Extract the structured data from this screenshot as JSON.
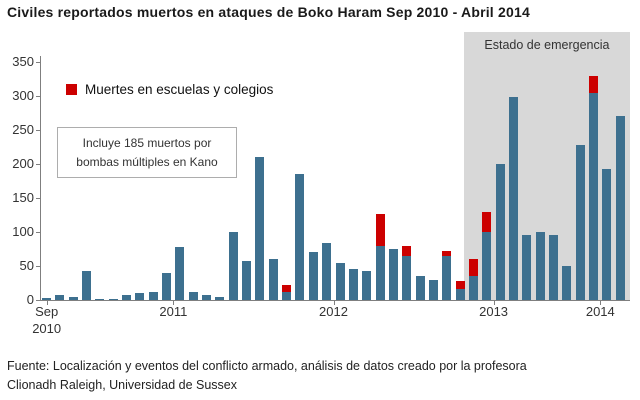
{
  "title": "Civiles reportados muertos en ataques de Boko Haram Sep 2010 - Abril 2014",
  "legend": {
    "school": "Muertes en escuelas y colegios"
  },
  "annotation": {
    "line1": "Incluye 185 muertos por",
    "line2": "bombas múltiples en Kano"
  },
  "emergency_label": "Estado de emergencia",
  "source": {
    "line1": "Fuente: Localización y eventos del conflicto armado, análisis de datos creado por la profesora",
    "line2": "Clionadh Raleigh, Universidad de Sussex"
  },
  "colors": {
    "bar": "#3d708f",
    "school": "#cc0000",
    "shade": "#d8d8d8",
    "axis": "#7f7f7f",
    "text": "#333333"
  },
  "chart_data": {
    "type": "bar",
    "stacked": true,
    "title": "Civiles reportados muertos en ataques de Boko Haram Sep 2010 - Abril 2014",
    "x_unit": "month",
    "months": [
      "2010-09",
      "2010-10",
      "2010-11",
      "2010-12",
      "2011-01",
      "2011-02",
      "2011-03",
      "2011-04",
      "2011-05",
      "2011-06",
      "2011-07",
      "2011-08",
      "2011-09",
      "2011-10",
      "2011-11",
      "2011-12",
      "2012-01",
      "2012-02",
      "2012-03",
      "2012-04",
      "2012-05",
      "2012-06",
      "2012-07",
      "2012-08",
      "2012-09",
      "2012-10",
      "2012-11",
      "2012-12",
      "2013-01",
      "2013-02",
      "2013-03",
      "2013-04",
      "2013-05",
      "2013-06",
      "2013-07",
      "2013-08",
      "2013-09",
      "2013-10",
      "2013-11",
      "2013-12",
      "2014-01",
      "2014-02",
      "2014-03",
      "2014-04"
    ],
    "total_deaths": [
      3,
      7,
      5,
      43,
      2,
      1,
      8,
      10,
      12,
      40,
      78,
      12,
      8,
      4,
      100,
      57,
      210,
      60,
      22,
      185,
      70,
      84,
      55,
      45,
      43,
      127,
      75,
      80,
      35,
      30,
      73,
      28,
      60,
      130,
      200,
      298,
      95,
      100,
      95,
      50,
      228,
      330,
      193,
      270
    ],
    "school_deaths": [
      0,
      0,
      0,
      0,
      0,
      0,
      0,
      0,
      0,
      0,
      0,
      0,
      0,
      0,
      0,
      0,
      0,
      0,
      10,
      0,
      0,
      0,
      0,
      0,
      0,
      47,
      0,
      15,
      0,
      0,
      8,
      12,
      25,
      30,
      0,
      0,
      0,
      0,
      0,
      0,
      0,
      25,
      0,
      0
    ],
    "ylim": [
      0,
      350
    ],
    "yticks": [
      0,
      50,
      100,
      150,
      200,
      250,
      300,
      350
    ],
    "x_tick_labels": [
      {
        "center_index": 0.5,
        "lines": [
          "Sep",
          "2010"
        ]
      },
      {
        "center_index": 10,
        "lines": [
          "2011"
        ]
      },
      {
        "center_index": 22,
        "lines": [
          "2012"
        ]
      },
      {
        "center_index": 34,
        "lines": [
          "2013"
        ]
      },
      {
        "center_index": 42,
        "lines": [
          "2014"
        ]
      }
    ],
    "emergency_region": {
      "label": "Estado de emergencia",
      "start_index": 32,
      "end_index": 43
    },
    "annotation": "Incluye 185 muertos por bombas múltiples en Kano",
    "legend_entries": [
      {
        "label": "Muertes en escuelas y colegios",
        "color": "#cc0000"
      }
    ],
    "legend_position": "top-left",
    "grid": false
  }
}
